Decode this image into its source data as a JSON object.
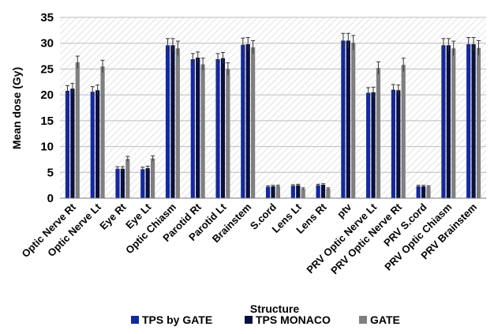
{
  "chart_data": {
    "type": "bar",
    "xlabel": "Structure",
    "ylabel": "Mean dose (Gy)",
    "ylim": [
      0,
      35
    ],
    "yticks": [
      0,
      5,
      10,
      15,
      20,
      25,
      30,
      35
    ],
    "grid": true,
    "legend_position": "bottom",
    "categories": [
      "Optic Nerve Rt",
      "Optic Nerve Lt",
      "Eye Rt",
      "Eye Lt",
      "Optic Chiasm",
      "Parotid Rt",
      "Parotid Lt",
      "Brainstem",
      "S.cord",
      "Lens Lt",
      "Lens Rt",
      "ptv",
      "PRV Optic Nerve Lt",
      "PRV Optic Nerve Rt",
      "PRV S.cord",
      "PRV Optic Chiasm",
      "PRV Brainstem"
    ],
    "series": [
      {
        "name": "TPS by GATE",
        "color": "#1428a0",
        "values": [
          20.8,
          20.6,
          5.7,
          5.6,
          29.6,
          26.9,
          26.9,
          29.7,
          2.2,
          2.4,
          2.5,
          30.5,
          20.4,
          21.0,
          2.3,
          29.6,
          29.8
        ],
        "errors": [
          1.0,
          1.0,
          0.4,
          0.4,
          1.3,
          1.1,
          1.1,
          1.3,
          0.2,
          0.2,
          0.2,
          1.4,
          1.0,
          1.0,
          0.2,
          1.3,
          1.3
        ]
      },
      {
        "name": "TPS MONACO",
        "color": "#0a0f3c",
        "values": [
          21.2,
          20.9,
          5.7,
          5.8,
          29.6,
          27.2,
          27.1,
          29.8,
          2.3,
          2.5,
          2.6,
          30.5,
          20.5,
          20.9,
          2.3,
          29.6,
          29.8
        ],
        "errors": [
          1.0,
          1.0,
          0.4,
          0.4,
          1.3,
          1.1,
          1.1,
          1.3,
          0.2,
          0.2,
          0.2,
          1.4,
          1.0,
          1.0,
          0.2,
          1.3,
          1.3
        ]
      },
      {
        "name": "GATE",
        "color": "#7f7f7f",
        "values": [
          26.3,
          25.5,
          7.6,
          7.7,
          29.0,
          25.9,
          25.0,
          29.2,
          2.3,
          1.8,
          1.8,
          30.1,
          25.2,
          25.8,
          2.2,
          29.0,
          29.1
        ],
        "errors": [
          1.2,
          1.2,
          0.5,
          0.5,
          1.4,
          1.2,
          1.2,
          1.3,
          0.2,
          0.2,
          0.2,
          1.4,
          1.2,
          1.3,
          0.2,
          1.4,
          1.4
        ]
      }
    ]
  }
}
